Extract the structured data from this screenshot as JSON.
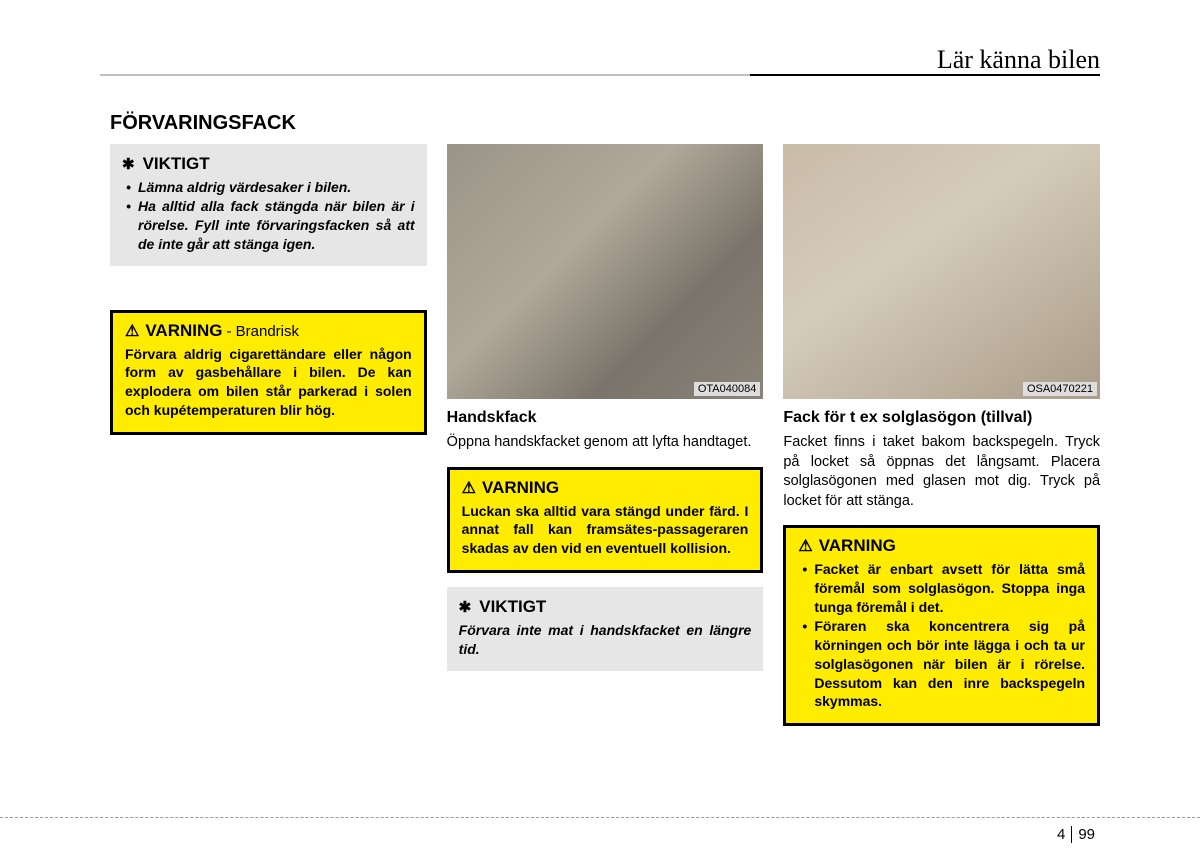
{
  "header": {
    "chapter_title": "Lär känna bilen"
  },
  "main_heading": "FÖRVARINGSFACK",
  "col1": {
    "caution": {
      "title": "VIKTIGT",
      "items": [
        "Lämna aldrig värdesaker i bilen.",
        "Ha alltid alla fack stängda när bilen är i rörelse. Fyll inte förvaringsfacken så att de inte går att stänga igen."
      ]
    },
    "warning": {
      "title": "VARNING",
      "subtitle": "- Brandrisk",
      "text": "Förvara aldrig cigarettändare eller någon form av gasbehållare i bilen. De kan explodera om bilen står parkerad i solen och kupétemperaturen blir hög."
    }
  },
  "col2": {
    "image_label": "OTA040084",
    "heading": "Handskfack",
    "body": "Öppna handskfacket genom att lyfta handtaget.",
    "warning": {
      "title": "VARNING",
      "text": "Luckan ska alltid vara stängd under färd. I annat fall kan framsätes-passageraren skadas av den vid en eventuell kollision."
    },
    "caution": {
      "title": "VIKTIGT",
      "text": "Förvara inte mat i handskfacket en längre tid."
    }
  },
  "col3": {
    "image_label": "OSA0470221",
    "heading": "Fack för t ex solglasögon (tillval)",
    "body": "Facket finns i taket bakom backspegeln. Tryck på locket så öppnas det långsamt. Placera solglasögonen med glasen mot dig. Tryck på locket för att stänga.",
    "warning": {
      "title": "VARNING",
      "items": [
        "Facket är enbart avsett för lätta små föremål som solglasögon. Stoppa inga tunga föremål i det.",
        "Föraren ska koncentrera sig på körningen och bör inte lägga i och ta ur solglasögonen när bilen är i rörelse. Dessutom kan den inre backspegeln skymmas."
      ]
    }
  },
  "footer": {
    "chapter": "4",
    "page": "99"
  }
}
